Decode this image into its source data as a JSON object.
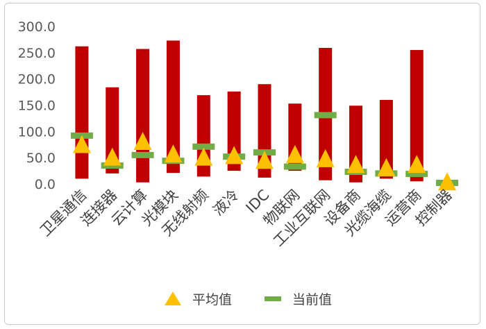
{
  "chart_data": {
    "type": "bar",
    "categories": [
      "卫星通信",
      "连接器",
      "云计算",
      "光模块",
      "无线射频",
      "液冷",
      "IDC",
      "物联网",
      "工业互联网",
      "设备商",
      "光缆海缆",
      "运营商",
      "控制器"
    ],
    "ranges": [
      {
        "low": 10,
        "high": 262
      },
      {
        "low": 20,
        "high": 184
      },
      {
        "low": 3,
        "high": 257
      },
      {
        "low": 21,
        "high": 273
      },
      {
        "low": 14,
        "high": 169
      },
      {
        "low": 25,
        "high": 176
      },
      {
        "low": 12,
        "high": 190
      },
      {
        "low": 25,
        "high": 153
      },
      {
        "low": 7,
        "high": 259
      },
      {
        "low": 3,
        "high": 149
      },
      {
        "low": 10,
        "high": 160
      },
      {
        "low": 5,
        "high": 255
      },
      {
        "low": 0,
        "high": 0
      }
    ],
    "series": [
      {
        "name": "平均值",
        "marker": "triangle",
        "color": "#FFC000",
        "values": [
          76,
          52,
          82,
          58,
          52,
          55,
          46,
          57,
          49,
          38,
          32,
          38,
          5
        ]
      },
      {
        "name": "当前值",
        "marker": "dash",
        "color": "#70AD47",
        "values": [
          92,
          35,
          55,
          44,
          71,
          52,
          60,
          33,
          131,
          23,
          20,
          19,
          2
        ]
      }
    ],
    "range_bar_color": "#C00000",
    "yticks": [
      "0.0",
      "50.0",
      "100.0",
      "150.0",
      "200.0",
      "250.0",
      "300.0"
    ],
    "ylim": [
      0,
      300
    ],
    "grid": false,
    "legend_position": "bottom"
  }
}
